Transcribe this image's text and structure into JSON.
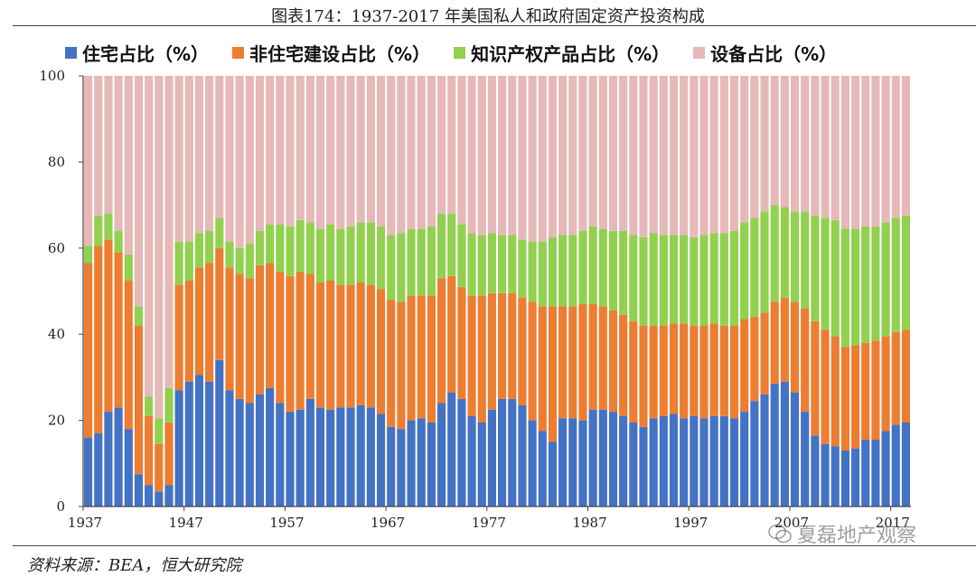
{
  "chart_title": "图表174：1937-2017 年美国私人和政府固定资产投资构成",
  "source_text": "资料来源：BEA，恒大研究院",
  "watermark_text": "夏磊地产观察",
  "chart_data": {
    "type": "bar",
    "stacked": true,
    "title": "图表174：1937-2017 年美国私人和政府固定资产投资构成",
    "xlabel": "",
    "ylabel": "",
    "ylim": [
      0,
      100
    ],
    "yticks": [
      "0",
      "20",
      "40",
      "60",
      "80",
      "100"
    ],
    "xtick_labels": [
      "1937",
      "1947",
      "1957",
      "1967",
      "1977",
      "1987",
      "1997",
      "2007",
      "2017"
    ],
    "start_year": 1937,
    "end_year": 2017,
    "series": [
      {
        "name": "住宅占比（%）",
        "color": "#4472C4",
        "values": [
          16,
          17,
          22,
          23,
          18,
          7.5,
          5,
          3.5,
          5,
          27,
          29,
          30.5,
          29,
          34,
          27,
          25,
          24,
          26,
          27.5,
          24,
          22,
          22.5,
          25,
          23,
          22.5,
          23,
          23,
          23.5,
          23,
          21.5,
          18.5,
          18,
          20,
          20.5,
          19.5,
          24,
          26.5,
          25,
          21,
          19.5,
          22.5,
          25,
          25,
          23.5,
          20,
          17.5,
          15,
          20.5,
          20.5,
          20,
          22.5,
          22.5,
          22,
          21,
          19.5,
          18.5,
          20.5,
          21,
          21.5,
          20.5,
          21,
          20.5,
          21,
          21,
          20.5,
          22,
          24.5,
          26,
          28.5,
          29,
          26.5,
          22,
          16.5,
          14.5,
          14,
          13,
          13.5,
          15.5,
          15.5,
          17.5,
          19,
          19.5
        ]
      },
      {
        "name": "非住宅建设占比（%）",
        "color": "#ED7D31",
        "values": [
          40.5,
          43.5,
          40,
          36,
          34.5,
          34.5,
          16,
          11,
          14.5,
          24.5,
          23.5,
          25,
          27.5,
          26,
          28.5,
          29,
          29,
          30,
          29,
          30.5,
          31.5,
          32,
          29,
          29,
          30,
          28.5,
          28.5,
          28.5,
          28.5,
          29,
          29.5,
          29.5,
          29,
          28.5,
          29.5,
          29,
          27,
          26,
          28,
          29.5,
          27,
          24.5,
          24.5,
          25,
          27.5,
          29,
          31.5,
          26,
          26,
          27,
          24.5,
          24,
          23.5,
          23.5,
          23.5,
          23.5,
          21.5,
          21,
          21,
          22,
          21,
          21.5,
          21.5,
          21,
          21.5,
          21.5,
          19.5,
          19,
          19,
          19.5,
          21,
          24,
          26.5,
          26.5,
          25.5,
          24,
          24,
          22.5,
          23,
          22,
          21.5,
          21.5
        ]
      },
      {
        "name": "知识产权产品占比（%）",
        "color": "#92D050",
        "values": [
          4,
          7,
          6,
          5,
          6,
          4.5,
          4.5,
          6,
          8,
          10,
          9,
          8,
          7.5,
          7,
          6,
          6,
          8,
          8,
          9,
          11,
          11.5,
          12,
          12,
          12.5,
          13,
          13,
          13.5,
          14,
          14.5,
          14.5,
          15,
          16,
          15.5,
          15.5,
          16,
          15,
          14.5,
          14.5,
          14.5,
          14,
          14,
          13.5,
          13.5,
          13.5,
          14,
          15,
          16,
          16.5,
          16.5,
          17,
          18,
          18,
          18.5,
          19.5,
          20,
          20.5,
          21.5,
          21,
          20.5,
          20.5,
          20.5,
          21,
          21,
          21.5,
          22,
          22.5,
          23,
          23.5,
          22.5,
          21,
          21,
          22.5,
          24.5,
          26,
          27,
          27.5,
          27,
          27,
          26.5,
          26.5,
          26.5,
          26.5
        ]
      },
      {
        "name": "设备占比（%）",
        "color": "#E6B9B8",
        "values": [
          39.5,
          32.5,
          32,
          36,
          41.5,
          53.5,
          74.5,
          79.5,
          72.5,
          38.5,
          38.5,
          36.5,
          36,
          33,
          38.5,
          40,
          39,
          36,
          34.5,
          34.5,
          35,
          33.5,
          34,
          35.5,
          34.5,
          35.5,
          35,
          34,
          34,
          35,
          37,
          36.5,
          35.5,
          35.5,
          35,
          32,
          32,
          34.5,
          36.5,
          37,
          36.5,
          37,
          37,
          38,
          38.5,
          38.5,
          37.5,
          37,
          37,
          36,
          35,
          35.5,
          36,
          36,
          37,
          37.5,
          36.5,
          37,
          37,
          37,
          37.5,
          37,
          36.5,
          36.5,
          36,
          34,
          33,
          31.5,
          30,
          30.5,
          31.5,
          31.5,
          32.5,
          33,
          33.5,
          35.5,
          35.5,
          35,
          35,
          34,
          33,
          32.5
        ]
      }
    ]
  }
}
